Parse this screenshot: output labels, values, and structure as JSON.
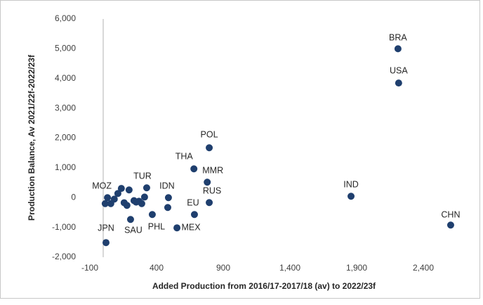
{
  "chart_data": {
    "type": "scatter",
    "xlabel": "Added Production from 2016/17-2017/18 (av) to 2022/23f",
    "ylabel": "Production Balance, Av 2021/22f-2022/23f",
    "color": "#1f3f6e",
    "x": [
      2210,
      2215,
      795,
      680,
      780,
      795,
      1858,
      2605,
      684,
      553,
      368,
      205,
      489,
      484,
      326,
      21,
      32,
      15,
      57,
      83,
      110,
      136,
      157,
      178,
      194,
      231,
      268,
      310,
      289,
      247
    ],
    "values": [
      5000,
      3850,
      1675,
      967,
      519,
      -165,
      47,
      -920,
      -566,
      -1014,
      -566,
      -731,
      0,
      -330,
      330,
      -1509,
      0,
      -200,
      -200,
      -50,
      140,
      310,
      -170,
      -260,
      260,
      -100,
      -120,
      20,
      -200,
      -150
    ],
    "point_labels": [
      "BRA",
      "USA",
      "POL",
      "THA",
      "MMR",
      "RUS",
      "IND",
      "CHN",
      "EU",
      "MEX",
      "PHL",
      "SAU",
      "IDN",
      null,
      "TUR",
      "JPN",
      "MOZ",
      null,
      null,
      null,
      null,
      null,
      null,
      null,
      null,
      null,
      null,
      null,
      null,
      null
    ],
    "xlim": [
      -100,
      2800
    ],
    "xticks": [
      -100,
      400,
      900,
      {
        "value": 1400,
        "label": "1,400"
      },
      {
        "value": 1900,
        "label": "1,900"
      },
      {
        "value": 2400,
        "label": "2,400"
      }
    ],
    "ylim": [
      -2000,
      6000
    ],
    "yticks": [
      {
        "value": -2000,
        "label": "-2,000"
      },
      {
        "value": -1000,
        "label": "-1,000"
      },
      0,
      {
        "value": 1000,
        "label": "1,000"
      },
      {
        "value": 2000,
        "label": "2,000"
      },
      {
        "value": 3000,
        "label": "3,000"
      },
      {
        "value": 4000,
        "label": "4,000"
      },
      {
        "value": 5000,
        "label": "5,000"
      },
      {
        "value": 6000,
        "label": "6,000"
      }
    ]
  }
}
